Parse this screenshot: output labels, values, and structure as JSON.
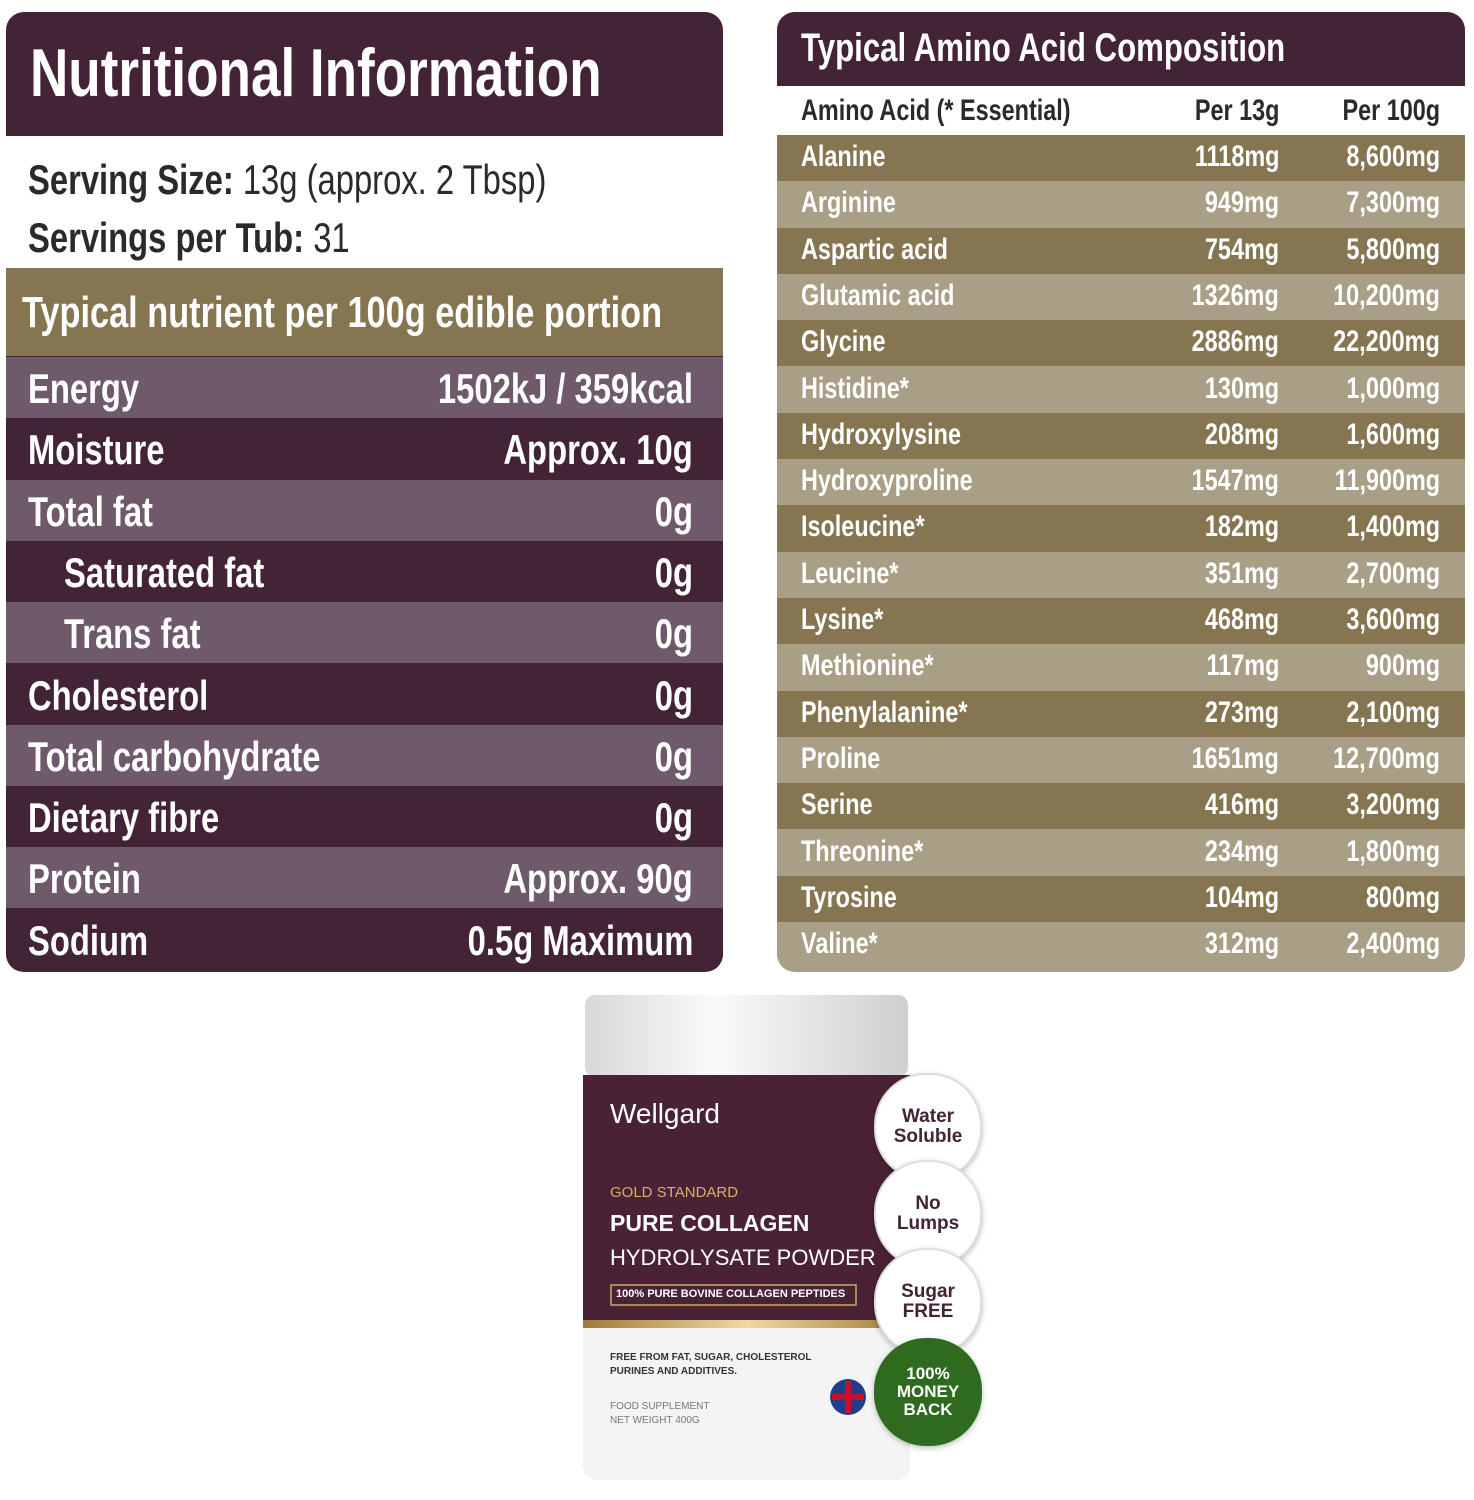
{
  "nutrition": {
    "title": "Nutritional Information",
    "serving_size": {
      "label": "Serving Size:",
      "value": "13g (approx. 2 Tbsp)"
    },
    "servings_per_tub": {
      "label": "Servings per Tub:",
      "value": "31"
    },
    "subheader": "Typical nutrient per 100g edible portion",
    "rows": [
      [
        "Energy",
        "1502kJ / 359kcal"
      ],
      [
        "Moisture",
        "Approx. 10g"
      ],
      [
        "Total fat",
        "0g"
      ],
      [
        "Saturated fat",
        "0g"
      ],
      [
        "Trans fat",
        "0g"
      ],
      [
        "Cholesterol",
        "0g"
      ],
      [
        "Total carbohydrate",
        "0g"
      ],
      [
        "Dietary fibre",
        "0g"
      ],
      [
        "Protein",
        "Approx. 90g"
      ],
      [
        "Sodium",
        "0.5g Maximum"
      ]
    ]
  },
  "amino": {
    "title": "Typical Amino Acid Composition",
    "header": [
      "Amino Acid (* Essential)",
      "Per 13g",
      "Per 100g"
    ],
    "rows": [
      [
        "Alanine",
        "1118mg",
        "8,600mg"
      ],
      [
        "Arginine",
        "949mg",
        "7,300mg"
      ],
      [
        "Aspartic acid",
        "754mg",
        "5,800mg"
      ],
      [
        "Glutamic acid",
        "1326mg",
        "10,200mg"
      ],
      [
        "Glycine",
        "2886mg",
        "22,200mg"
      ],
      [
        "Histidine*",
        "130mg",
        "1,000mg"
      ],
      [
        "Hydroxylysine",
        "208mg",
        "1,600mg"
      ],
      [
        "Hydroxyproline",
        "1547mg",
        "11,900mg"
      ],
      [
        "Isoleucine*",
        "182mg",
        "1,400mg"
      ],
      [
        "Leucine*",
        "351mg",
        "2,700mg"
      ],
      [
        "Lysine*",
        "468mg",
        "3,600mg"
      ],
      [
        "Methionine*",
        "117mg",
        "900mg"
      ],
      [
        "Phenylalanine*",
        "273mg",
        "2,100mg"
      ],
      [
        "Proline",
        "1651mg",
        "12,700mg"
      ],
      [
        "Serine",
        "416mg",
        "3,200mg"
      ],
      [
        "Threonine*",
        "234mg",
        "1,800mg"
      ],
      [
        "Tyrosine",
        "104mg",
        "800mg"
      ],
      [
        "Valine*",
        "312mg",
        "2,400mg"
      ]
    ]
  },
  "product": {
    "brand": "Wellgard",
    "line": "GOLD STANDARD",
    "name": "PURE COLLAGEN",
    "subname": "HYDROLYSATE POWDER",
    "tag": "100% PURE BOVINE COLLAGEN PEPTIDES",
    "free_from": [
      "FREE FROM FAT, SUGAR, CHOLESTEROL",
      "PURINES AND ADDITIVES."
    ],
    "supplement": "FOOD SUPPLEMENT",
    "net_weight": "NET WEIGHT 400G",
    "badges": [
      [
        "Water",
        "Soluble"
      ],
      [
        "No",
        "Lumps"
      ],
      [
        "Sugar",
        "FREE"
      ],
      [
        "100%",
        "MONEY",
        "BACK"
      ]
    ]
  }
}
